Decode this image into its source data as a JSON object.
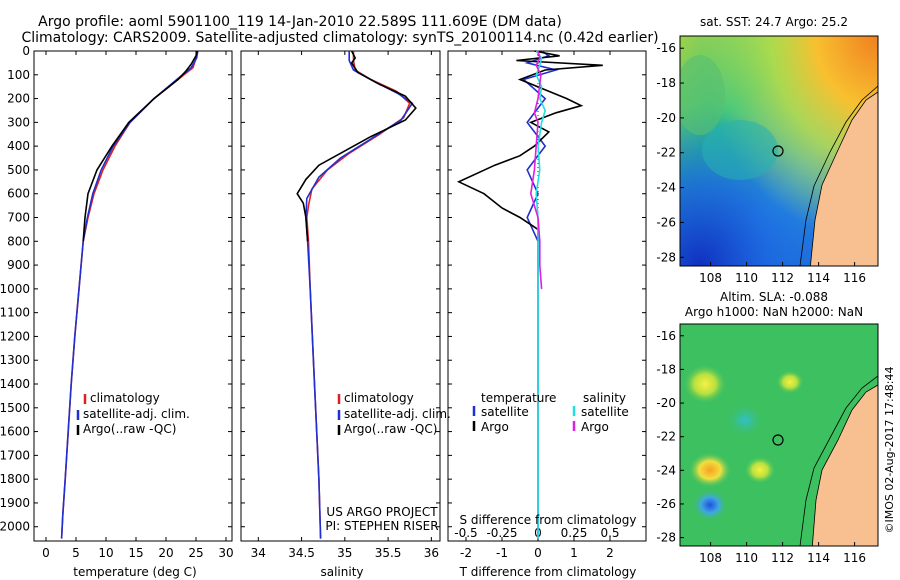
{
  "header": {
    "line1": "Argo profile: aoml 5901100_119 14-Jan-2010 22.589S 111.609E (DM data)",
    "line2": "Climatology: CARS2009. Satellite-adjusted climatology: synTS_20100114.nc (0.42d earlier)"
  },
  "footer": {
    "project": "US ARGO PROJECT",
    "pi": "PI: STEPHEN RISER",
    "stamp": "©IMOS 02-Aug-2017 17:48:44"
  },
  "colors": {
    "climatology": "#e02020",
    "satellite": "#2030d0",
    "argo": "#000000",
    "salinity_satellite": "#20e0e0",
    "salinity_argo": "#e020e0",
    "land": "#f8c090"
  },
  "chart_data": [
    {
      "type": "line",
      "name": "temperature-profile",
      "xlabel": "temperature (deg C)",
      "ylabel": "",
      "xlim": [
        -2,
        31
      ],
      "ylim": [
        2060,
        0
      ],
      "xticks": [
        0,
        5,
        10,
        15,
        20,
        25,
        30
      ],
      "yticks": [
        0,
        100,
        200,
        300,
        400,
        500,
        600,
        700,
        800,
        900,
        1000,
        1100,
        1200,
        1300,
        1400,
        1500,
        1600,
        1700,
        1800,
        1900,
        2000
      ],
      "legend": [
        "climatology",
        "satellite-adj. clim.",
        "Argo(..raw -QC)"
      ],
      "legend_position": "lower-middle",
      "series": [
        {
          "name": "climatology",
          "color": "#e02020",
          "points": [
            [
              25.2,
              0
            ],
            [
              25,
              30
            ],
            [
              24.5,
              70
            ],
            [
              22,
              120
            ],
            [
              18,
              200
            ],
            [
              14,
              300
            ],
            [
              11.5,
              400
            ],
            [
              9.5,
              500
            ],
            [
              8,
              600
            ],
            [
              7,
              700
            ],
            [
              6.2,
              800
            ],
            [
              5.5,
              1000
            ],
            [
              4.8,
              1200
            ],
            [
              4.2,
              1400
            ],
            [
              3.7,
              1600
            ],
            [
              3.2,
              1800
            ],
            [
              2.8,
              1950
            ],
            [
              2.6,
              2050
            ]
          ]
        },
        {
          "name": "satellite-adj. clim.",
          "color": "#2030d0",
          "points": [
            [
              25.3,
              0
            ],
            [
              25.1,
              30
            ],
            [
              24.2,
              70
            ],
            [
              21.8,
              120
            ],
            [
              18,
              200
            ],
            [
              14,
              300
            ],
            [
              11.2,
              400
            ],
            [
              9.2,
              500
            ],
            [
              7.8,
              600
            ],
            [
              6.9,
              700
            ],
            [
              6.2,
              800
            ],
            [
              5.5,
              1000
            ],
            [
              4.8,
              1200
            ],
            [
              4.2,
              1400
            ],
            [
              3.7,
              1600
            ],
            [
              3.2,
              1800
            ],
            [
              2.8,
              1950
            ],
            [
              2.6,
              2050
            ]
          ]
        },
        {
          "name": "Argo(..raw -QC)",
          "color": "#000000",
          "points": [
            [
              25.2,
              0
            ],
            [
              25,
              20
            ],
            [
              24.2,
              55
            ],
            [
              23.3,
              85
            ],
            [
              22,
              120
            ],
            [
              18,
              200
            ],
            [
              13.8,
              300
            ],
            [
              11,
              400
            ],
            [
              8.5,
              500
            ],
            [
              7,
              600
            ],
            [
              6.5,
              700
            ],
            [
              6.2,
              800
            ]
          ]
        }
      ]
    },
    {
      "type": "line",
      "name": "salinity-profile",
      "xlabel": "salinity",
      "ylabel": "",
      "xlim": [
        33.8,
        36.1
      ],
      "ylim": [
        2060,
        0
      ],
      "xticks": [
        34,
        34.5,
        35,
        35.5,
        36
      ],
      "legend": [
        "climatology",
        "satellite-adj. clim.",
        "Argo(..raw -QC)"
      ],
      "legend_position": "lower-middle",
      "series": [
        {
          "name": "climatology",
          "color": "#e02020",
          "points": [
            [
              35.1,
              0
            ],
            [
              35.1,
              40
            ],
            [
              35.12,
              80
            ],
            [
              35.3,
              120
            ],
            [
              35.6,
              170
            ],
            [
              35.75,
              220
            ],
            [
              35.68,
              280
            ],
            [
              35.4,
              350
            ],
            [
              35.05,
              430
            ],
            [
              34.8,
              500
            ],
            [
              34.62,
              580
            ],
            [
              34.58,
              650
            ],
            [
              34.56,
              700
            ],
            [
              34.58,
              800
            ],
            [
              34.6,
              1000
            ],
            [
              34.65,
              1400
            ],
            [
              34.7,
              1800
            ],
            [
              34.72,
              2050
            ]
          ]
        },
        {
          "name": "satellite-adj. clim.",
          "color": "#2030d0",
          "points": [
            [
              35.05,
              0
            ],
            [
              35.05,
              40
            ],
            [
              35.1,
              80
            ],
            [
              35.35,
              130
            ],
            [
              35.62,
              180
            ],
            [
              35.78,
              220
            ],
            [
              35.65,
              290
            ],
            [
              35.3,
              370
            ],
            [
              34.95,
              450
            ],
            [
              34.7,
              530
            ],
            [
              34.56,
              620
            ],
            [
              34.55,
              700
            ],
            [
              34.57,
              800
            ],
            [
              34.6,
              1000
            ],
            [
              34.65,
              1400
            ],
            [
              34.7,
              1800
            ],
            [
              34.72,
              2050
            ]
          ]
        },
        {
          "name": "Argo(..raw -QC)",
          "color": "#000000",
          "points": [
            [
              35.08,
              0
            ],
            [
              35.12,
              30
            ],
            [
              35.08,
              50
            ],
            [
              35.15,
              90
            ],
            [
              35.4,
              140
            ],
            [
              35.7,
              190
            ],
            [
              35.82,
              240
            ],
            [
              35.7,
              290
            ],
            [
              35.3,
              360
            ],
            [
              35,
              420
            ],
            [
              34.7,
              480
            ],
            [
              34.55,
              540
            ],
            [
              34.45,
              600
            ],
            [
              34.52,
              640
            ],
            [
              34.55,
              700
            ],
            [
              34.57,
              800
            ]
          ]
        }
      ]
    },
    {
      "type": "line",
      "name": "difference-profile",
      "xlabel": "T difference from climatology",
      "xlabel2": "S difference from climatology",
      "xlim": [
        -2.5,
        3
      ],
      "xticks": [
        -2,
        -1,
        0,
        1,
        2
      ],
      "xlim_top": [
        -0.625,
        0.75
      ],
      "xticks_top": [
        "-0.5",
        "-0.25",
        "0",
        "0.25",
        "0.5"
      ],
      "ylim": [
        2060,
        0
      ],
      "legend": {
        "temperature_title": "temperature",
        "salinity_title": "salinity",
        "items": [
          "satellite",
          "Argo",
          "satellite",
          "Argo"
        ]
      },
      "legend_position": "lower-middle",
      "series": [
        {
          "name": "temperature satellite",
          "color": "#2030d0",
          "points": [
            [
              0.1,
              0
            ],
            [
              0.3,
              20
            ],
            [
              -0.3,
              50
            ],
            [
              0.5,
              80
            ],
            [
              -0.4,
              120
            ],
            [
              0.2,
              200
            ],
            [
              -0.3,
              300
            ],
            [
              0.2,
              400
            ],
            [
              -0.3,
              500
            ],
            [
              0,
              600
            ],
            [
              -0.3,
              700
            ],
            [
              0,
              800
            ],
            [
              0,
              1000
            ],
            [
              0,
              2050
            ]
          ]
        },
        {
          "name": "temperature Argo",
          "color": "#000000",
          "points": [
            [
              -0.1,
              0
            ],
            [
              0.6,
              20
            ],
            [
              -0.6,
              40
            ],
            [
              1.8,
              60
            ],
            [
              0.2,
              80
            ],
            [
              -0.5,
              120
            ],
            [
              0.8,
              200
            ],
            [
              1.2,
              230
            ],
            [
              0.5,
              260
            ],
            [
              -0.2,
              300
            ],
            [
              0.3,
              340
            ],
            [
              -0.1,
              400
            ],
            [
              -0.5,
              440
            ],
            [
              -1.2,
              480
            ],
            [
              -2.2,
              550
            ],
            [
              -1.5,
              600
            ],
            [
              -1,
              660
            ],
            [
              -0.5,
              700
            ],
            [
              0,
              750
            ],
            [
              0,
              800
            ]
          ]
        },
        {
          "name": "salinity satellite",
          "color": "#20e0e0",
          "points": [
            [
              -0.04,
              0
            ],
            [
              0.1,
              30
            ],
            [
              0.05,
              60
            ],
            [
              -0.05,
              100
            ],
            [
              0.1,
              150
            ],
            [
              0.05,
              200
            ],
            [
              0.2,
              250
            ],
            [
              0.1,
              300
            ],
            [
              0,
              400
            ],
            [
              0.05,
              500
            ],
            [
              -0.05,
              600
            ],
            [
              0,
              700
            ],
            [
              0,
              1000
            ],
            [
              0,
              2050
            ]
          ]
        },
        {
          "name": "salinity Argo",
          "color": "#e020e0",
          "points": [
            [
              0,
              0
            ],
            [
              0.05,
              30
            ],
            [
              -0.05,
              60
            ],
            [
              0.08,
              100
            ],
            [
              0,
              200
            ],
            [
              -0.1,
              260
            ],
            [
              0,
              300
            ],
            [
              -0.05,
              400
            ],
            [
              -0.1,
              500
            ],
            [
              -0.2,
              600
            ],
            [
              0,
              700
            ],
            [
              0.05,
              800
            ],
            [
              0.05,
              900
            ],
            [
              0.1,
              1000
            ]
          ]
        }
      ]
    },
    {
      "type": "heatmap",
      "name": "sst-map",
      "title": "sat. SST: 24.7  Argo: 25.2",
      "xlim": [
        106.3,
        117.3
      ],
      "ylim": [
        -28.5,
        -15.3
      ],
      "xticks": [
        "108",
        "110",
        "112",
        "114",
        "116"
      ],
      "yticks": [
        "-16",
        "-18",
        "-20",
        "-22",
        "-24",
        "-26",
        "-28"
      ],
      "marker": {
        "lon": 111.609,
        "lat": -22.589
      }
    },
    {
      "type": "heatmap",
      "name": "sla-map",
      "title": "Altim. SLA: -0.088",
      "subtitle": "Argo h1000: NaN h2000: NaN",
      "xlim": [
        106.3,
        117.3
      ],
      "ylim": [
        -28.5,
        -15.3
      ],
      "xticks": [
        "108",
        "110",
        "112",
        "114",
        "116"
      ],
      "yticks": [
        "-16",
        "-18",
        "-20",
        "-22",
        "-24",
        "-26",
        "-28"
      ],
      "marker": {
        "lon": 111.609,
        "lat": -22.589
      }
    }
  ]
}
